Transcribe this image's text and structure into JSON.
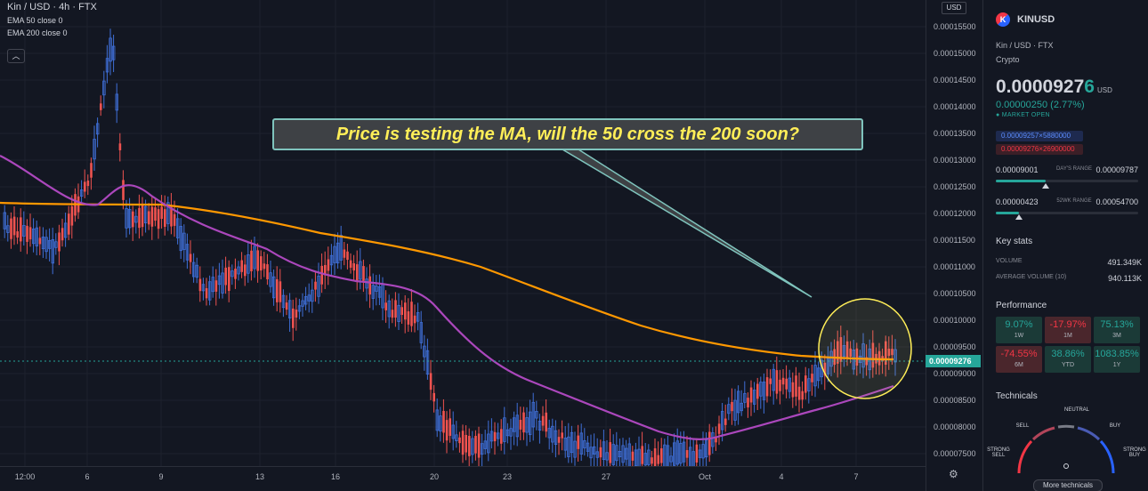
{
  "legend": {
    "symbol_line": "Kin / USD · 4h · FTX",
    "ema50": "EMA 50 close 0",
    "ema200": "EMA 200 close 0",
    "collapse_icon": "chevron-up-icon"
  },
  "annotation": {
    "text": "Price is testing the MA, will the 50 cross the 200 soon?"
  },
  "price_axis": {
    "currency": "USD",
    "ticks": [
      "0.00015500",
      "0.00015000",
      "0.00014500",
      "0.00014000",
      "0.00013500",
      "0.00013000",
      "0.00012500",
      "0.00012000",
      "0.00011500",
      "0.00011000",
      "0.00010500",
      "0.00010000",
      "0.00009500",
      "0.00009000",
      "0.00008500",
      "0.00008000",
      "0.00007500"
    ],
    "current_price": "0.00009276"
  },
  "time_axis": {
    "ticks": [
      "12:00",
      "6",
      "9",
      "13",
      "16",
      "20",
      "23",
      "27",
      "Oct",
      "4",
      "7"
    ]
  },
  "panel": {
    "symbol": "KINUSD",
    "exchange_line": "Kin / USD  ·  FTX",
    "type": "Crypto",
    "price_main": "0.0000927",
    "price_last_digit": "6",
    "price_currency": "USD",
    "change": "0.00000250 (2.77%)",
    "market_status": "MARKET OPEN",
    "bid": "0.00009257×5880000",
    "ask": "0.00009276×26900000",
    "days_range": {
      "low": "0.00009001",
      "label": "DAY'S RANGE",
      "high": "0.00009787",
      "position": 0.35
    },
    "wk52_range": {
      "low": "0.00000423",
      "label": "52WK RANGE",
      "high": "0.00054700",
      "position": 0.16
    },
    "key_stats_title": "Key stats",
    "volume_label": "VOLUME",
    "volume_value": "491.349K",
    "avg_volume_label": "AVERAGE VOLUME (10)",
    "avg_volume_value": "940.113K",
    "performance_title": "Performance",
    "performance": [
      {
        "value": "9.07%",
        "period": "1W",
        "dir": "up"
      },
      {
        "value": "-17.97%",
        "period": "1M",
        "dir": "dn"
      },
      {
        "value": "75.13%",
        "period": "3M",
        "dir": "up"
      },
      {
        "value": "-74.55%",
        "period": "6M",
        "dir": "dn"
      },
      {
        "value": "38.86%",
        "period": "YTD",
        "dir": "up"
      },
      {
        "value": "1083.85%",
        "period": "1Y",
        "dir": "up"
      }
    ],
    "technicals_title": "Technicals",
    "technicals": {
      "neutral": "NEUTRAL",
      "sell": "SELL",
      "buy": "BUY",
      "strong_sell": "STRONG SELL",
      "strong_buy": "STRONG BUY"
    },
    "more_technicals": "More technicals"
  },
  "colors": {
    "up": "#26a69a",
    "down": "#f23645",
    "candle_up": "#3f6fd8",
    "candle_down": "#ef5350",
    "ema50": "#ab47bc",
    "ema200": "#ff9800",
    "callout_text": "#ffee58",
    "callout_border": "#7fc4bd",
    "highlight": "#ffee58"
  }
}
